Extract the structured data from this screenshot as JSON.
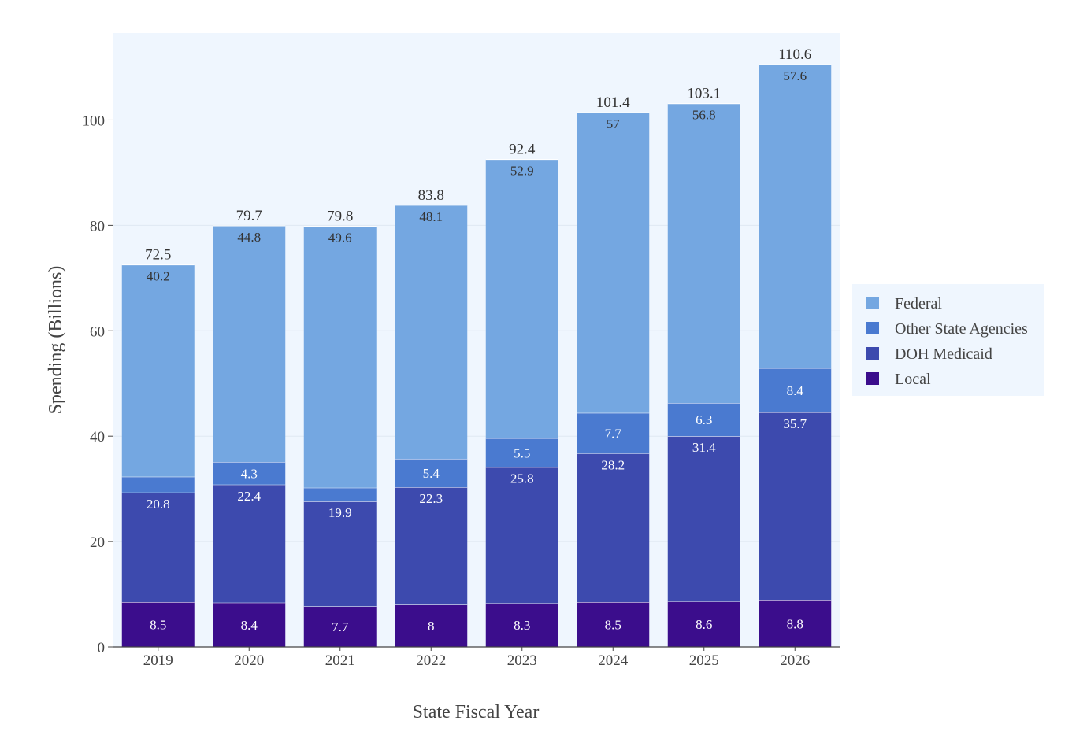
{
  "chart_data": {
    "type": "bar",
    "stacked": true,
    "categories": [
      "2019",
      "2020",
      "2021",
      "2022",
      "2023",
      "2024",
      "2025",
      "2026"
    ],
    "series": [
      {
        "name": "Local",
        "color": "#3b0d8c",
        "values": [
          8.5,
          8.4,
          7.7,
          8,
          8.3,
          8.5,
          8.6,
          8.8
        ],
        "labels": [
          "8.5",
          "8.4",
          "7.7",
          "8",
          "8.3",
          "8.5",
          "8.6",
          "8.8"
        ]
      },
      {
        "name": "DOH Medicaid",
        "color": "#3d4aae",
        "values": [
          20.8,
          22.4,
          19.9,
          22.3,
          25.8,
          28.2,
          31.4,
          35.7
        ],
        "labels": [
          "20.8",
          "22.4",
          "19.9",
          "22.3",
          "25.8",
          "28.2",
          "31.4",
          "35.7"
        ]
      },
      {
        "name": "Other State Agencies",
        "color": "#4a7ad0",
        "values": [
          3.0,
          4.3,
          2.6,
          5.4,
          5.5,
          7.7,
          6.3,
          8.4
        ],
        "labels": [
          "",
          "4.3",
          "",
          "5.4",
          "5.5",
          "7.7",
          "6.3",
          "8.4"
        ]
      },
      {
        "name": "Federal",
        "color": "#74a7e1",
        "values": [
          40.2,
          44.8,
          49.6,
          48.1,
          52.9,
          57,
          56.8,
          57.6
        ],
        "labels": [
          "40.2",
          "44.8",
          "49.6",
          "48.1",
          "52.9",
          "57",
          "56.8",
          "57.6"
        ]
      }
    ],
    "totals": [
      "72.5",
      "79.7",
      "79.8",
      "83.8",
      "92.4",
      "101.4",
      "103.1",
      "110.6"
    ],
    "xlabel": "State Fiscal Year",
    "ylabel": "Spending (Billions)",
    "ylim": [
      0,
      116.5
    ],
    "yticks": [
      0,
      20,
      40,
      60,
      80,
      100
    ],
    "grid": true,
    "legend_position": "right",
    "legend_order": [
      "Federal",
      "Other State Agencies",
      "DOH Medicaid",
      "Local"
    ],
    "plot_background": "#eff6fe"
  }
}
